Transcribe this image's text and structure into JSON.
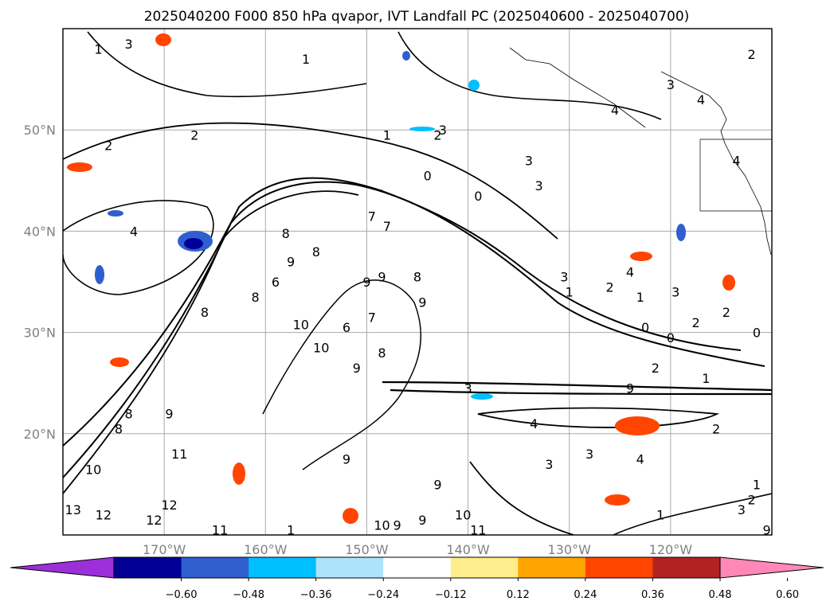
{
  "title": "2025040200 F000 850 hPa qvapor, IVT Landfall PC (2025040600 - 2025040700)",
  "map": {
    "lat_labels": [
      "50°N",
      "40°N",
      "30°N",
      "20°N"
    ],
    "lon_labels": [
      "170°W",
      "160°W",
      "150°W",
      "140°W",
      "130°W",
      "120°W"
    ],
    "lat_range": [
      10,
      60
    ],
    "lon_range": [
      -180,
      -110
    ],
    "grid": true
  },
  "colorbar": {
    "ticks": [
      "−0.60",
      "−0.48",
      "−0.36",
      "−0.24",
      "−0.12",
      "0.12",
      "0.24",
      "0.36",
      "0.48",
      "0.60"
    ],
    "colors": [
      "#9b30d9",
      "#000096",
      "#2f5fcf",
      "#00bfff",
      "#aee4fb",
      "#ffffff",
      "#ffec8c",
      "#ffa500",
      "#ff4500",
      "#b22222",
      "#ff88b8"
    ],
    "extend": "both"
  },
  "contour_labels": [
    {
      "text": "1",
      "lon": -176.5,
      "lat": 58.0
    },
    {
      "text": "3",
      "lon": -173.5,
      "lat": 58.5
    },
    {
      "text": "1",
      "lon": -156.0,
      "lat": 57.0
    },
    {
      "text": "2",
      "lon": -112.0,
      "lat": 57.5
    },
    {
      "text": "3",
      "lon": -120.0,
      "lat": 54.5
    },
    {
      "text": "4",
      "lon": -125.5,
      "lat": 52.0
    },
    {
      "text": "4",
      "lon": -117.0,
      "lat": 53.0
    },
    {
      "text": "2",
      "lon": -175.5,
      "lat": 48.5
    },
    {
      "text": "2",
      "lon": -167.0,
      "lat": 49.5
    },
    {
      "text": "1",
      "lon": -148.0,
      "lat": 49.5
    },
    {
      "text": "3",
      "lon": -142.5,
      "lat": 50.0
    },
    {
      "text": "2",
      "lon": -143.0,
      "lat": 49.5
    },
    {
      "text": "3",
      "lon": -134.0,
      "lat": 47.0
    },
    {
      "text": "4",
      "lon": -113.5,
      "lat": 47.0
    },
    {
      "text": "0",
      "lon": -144.0,
      "lat": 45.5
    },
    {
      "text": "0",
      "lon": -139.0,
      "lat": 43.5
    },
    {
      "text": "3",
      "lon": -133.0,
      "lat": 44.5
    },
    {
      "text": "4",
      "lon": -173.0,
      "lat": 40.0
    },
    {
      "text": "8",
      "lon": -158.0,
      "lat": 39.8
    },
    {
      "text": "7",
      "lon": -149.5,
      "lat": 41.5
    },
    {
      "text": "7",
      "lon": -148.0,
      "lat": 40.5
    },
    {
      "text": "8",
      "lon": -155.0,
      "lat": 38.0
    },
    {
      "text": "9",
      "lon": -157.5,
      "lat": 37.0
    },
    {
      "text": "6",
      "lon": -159.0,
      "lat": 35.0
    },
    {
      "text": "8",
      "lon": -161.0,
      "lat": 33.5
    },
    {
      "text": "8",
      "lon": -166.0,
      "lat": 32.0
    },
    {
      "text": "10",
      "lon": -156.5,
      "lat": 30.8
    },
    {
      "text": "9",
      "lon": -150.0,
      "lat": 35.0
    },
    {
      "text": "9",
      "lon": -148.5,
      "lat": 35.5
    },
    {
      "text": "9",
      "lon": -144.5,
      "lat": 33.0
    },
    {
      "text": "8",
      "lon": -145.0,
      "lat": 35.5
    },
    {
      "text": "6",
      "lon": -152.0,
      "lat": 30.5
    },
    {
      "text": "7",
      "lon": -149.5,
      "lat": 31.5
    },
    {
      "text": "10",
      "lon": -154.5,
      "lat": 28.5
    },
    {
      "text": "9",
      "lon": -151.0,
      "lat": 26.5
    },
    {
      "text": "8",
      "lon": -148.5,
      "lat": 28.0
    },
    {
      "text": "3",
      "lon": -130.5,
      "lat": 35.5
    },
    {
      "text": "2",
      "lon": -126.0,
      "lat": 34.5
    },
    {
      "text": "4",
      "lon": -124.0,
      "lat": 36.0
    },
    {
      "text": "1",
      "lon": -123.0,
      "lat": 33.5
    },
    {
      "text": "3",
      "lon": -119.5,
      "lat": 34.0
    },
    {
      "text": "1",
      "lon": -130.0,
      "lat": 34.0
    },
    {
      "text": "2",
      "lon": -114.5,
      "lat": 32.0
    },
    {
      "text": "0",
      "lon": -122.5,
      "lat": 30.5
    },
    {
      "text": "2",
      "lon": -117.5,
      "lat": 31.0
    },
    {
      "text": "0",
      "lon": -120.0,
      "lat": 29.5
    },
    {
      "text": "0",
      "lon": -111.5,
      "lat": 30.0
    },
    {
      "text": "2",
      "lon": -121.5,
      "lat": 26.5
    },
    {
      "text": "1",
      "lon": -116.5,
      "lat": 25.5
    },
    {
      "text": "3",
      "lon": -140.0,
      "lat": 24.5
    },
    {
      "text": "9",
      "lon": -124.0,
      "lat": 24.5
    },
    {
      "text": "4",
      "lon": -133.5,
      "lat": 21.0
    },
    {
      "text": "3",
      "lon": -132.0,
      "lat": 17.0
    },
    {
      "text": "3",
      "lon": -128.0,
      "lat": 18.0
    },
    {
      "text": "4",
      "lon": -123.0,
      "lat": 17.5
    },
    {
      "text": "2",
      "lon": -115.5,
      "lat": 20.5
    },
    {
      "text": "2",
      "lon": -112.0,
      "lat": 13.5
    },
    {
      "text": "1",
      "lon": -111.5,
      "lat": 15.0
    },
    {
      "text": "1",
      "lon": -121.0,
      "lat": 12.0
    },
    {
      "text": "3",
      "lon": -113.0,
      "lat": 12.5
    },
    {
      "text": "9",
      "lon": -110.5,
      "lat": 10.5
    },
    {
      "text": "8",
      "lon": -173.5,
      "lat": 22.0
    },
    {
      "text": "9",
      "lon": -169.5,
      "lat": 22.0
    },
    {
      "text": "8",
      "lon": -174.5,
      "lat": 20.5
    },
    {
      "text": "11",
      "lon": -168.5,
      "lat": 18.0
    },
    {
      "text": "10",
      "lon": -177.0,
      "lat": 16.5
    },
    {
      "text": "9",
      "lon": -152.0,
      "lat": 17.5
    },
    {
      "text": "12",
      "lon": -169.5,
      "lat": 13.0
    },
    {
      "text": "12",
      "lon": -176.0,
      "lat": 12.0
    },
    {
      "text": "12",
      "lon": -171.0,
      "lat": 11.5
    },
    {
      "text": "11",
      "lon": -164.5,
      "lat": 10.5
    },
    {
      "text": "13",
      "lon": -179.0,
      "lat": 12.5
    },
    {
      "text": "1",
      "lon": -157.5,
      "lat": 10.5
    },
    {
      "text": "10",
      "lon": -148.5,
      "lat": 11.0
    },
    {
      "text": "9",
      "lon": -143.0,
      "lat": 15.0
    },
    {
      "text": "10",
      "lon": -140.5,
      "lat": 12.0
    },
    {
      "text": "11",
      "lon": -139.0,
      "lat": 10.5
    },
    {
      "text": "9",
      "lon": -144.5,
      "lat": 11.5
    },
    {
      "text": "9",
      "lon": -147.0,
      "lat": 11.0
    }
  ]
}
